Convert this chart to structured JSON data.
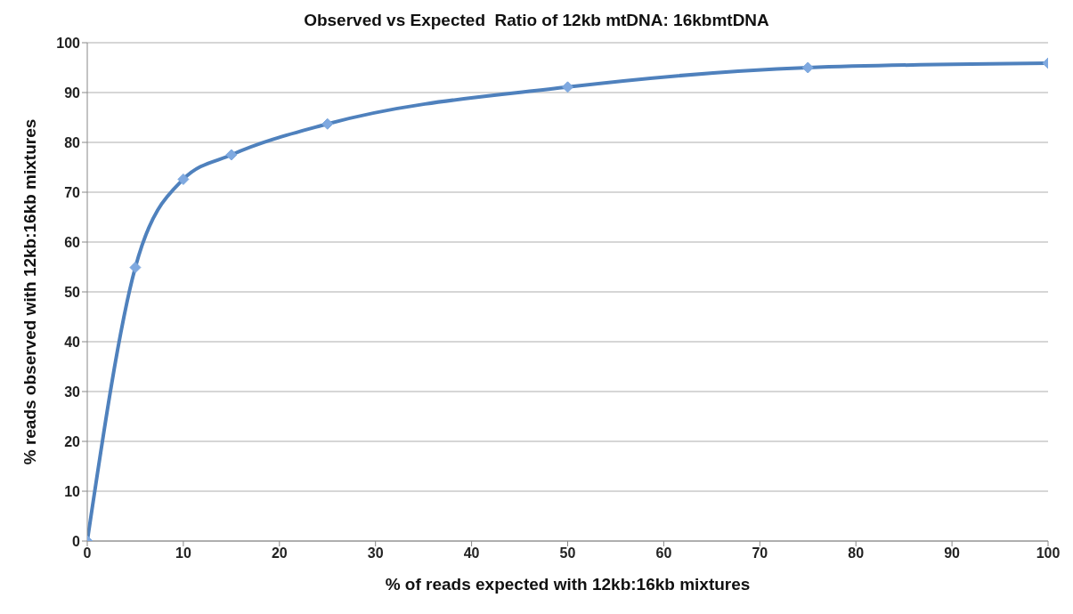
{
  "chart_data": {
    "type": "line",
    "title": "Observed vs Expected  Ratio of 12kb mtDNA: 16kbmtDNA",
    "xlabel": "% of reads expected with 12kb:16kb mixtures",
    "ylabel": "% reads observed with 12kb:16kb mixtures",
    "x": [
      0,
      5,
      10,
      15,
      25,
      50,
      75,
      100
    ],
    "series": [
      {
        "color": "#4f81bd",
        "values": [
          0,
          54.9,
          72.6,
          77.5,
          83.7,
          91.1,
          95.0,
          95.9
        ]
      }
    ],
    "xlim": [
      0,
      100
    ],
    "xticks": [
      0,
      10,
      20,
      30,
      40,
      50,
      60,
      70,
      80,
      90,
      100
    ],
    "ylim": [
      0,
      100
    ],
    "yticks": [
      0,
      10,
      20,
      30,
      40,
      50,
      60,
      70,
      80,
      90,
      100
    ],
    "grid": "y",
    "legend": false,
    "marker": "diamond",
    "line_style": "solid"
  }
}
